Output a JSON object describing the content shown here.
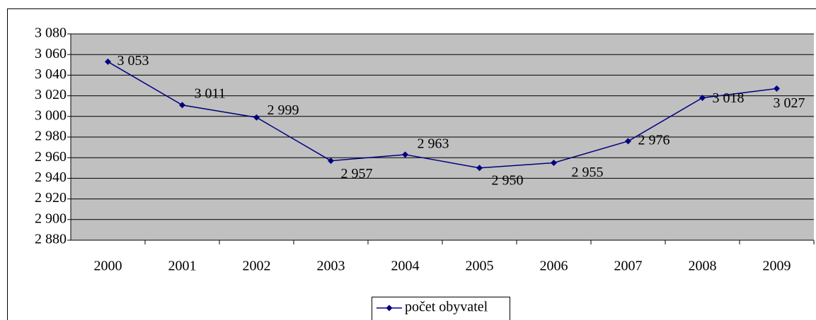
{
  "chart_data": {
    "type": "line",
    "categories": [
      "2000",
      "2001",
      "2002",
      "2003",
      "2004",
      "2005",
      "2006",
      "2007",
      "2008",
      "2009"
    ],
    "series": [
      {
        "name": "počet obyvatel",
        "color": "#000080",
        "values": [
          3053,
          3011,
          2999,
          2957,
          2963,
          2950,
          2955,
          2976,
          3018,
          3027
        ],
        "value_labels": [
          "3 053",
          "3 011",
          "2 999",
          "2 957",
          "2 963",
          "2 950",
          "2 955",
          "2 976",
          "3 018",
          "3 027"
        ]
      }
    ],
    "ylim": [
      2880,
      3080
    ],
    "yticks": [
      {
        "value": 2880,
        "label": "2 880"
      },
      {
        "value": 2900,
        "label": "2 900"
      },
      {
        "value": 2920,
        "label": "2 920"
      },
      {
        "value": 2940,
        "label": "2 940"
      },
      {
        "value": 2960,
        "label": "2 960"
      },
      {
        "value": 2980,
        "label": "2 980"
      },
      {
        "value": 3000,
        "label": "3 000"
      },
      {
        "value": 3020,
        "label": "3 020"
      },
      {
        "value": 3040,
        "label": "3 040"
      },
      {
        "value": 3060,
        "label": "3 060"
      },
      {
        "value": 3080,
        "label": "3 080"
      }
    ],
    "grid": true,
    "plot_background": "#c0c0c0",
    "legend": "bottom"
  }
}
